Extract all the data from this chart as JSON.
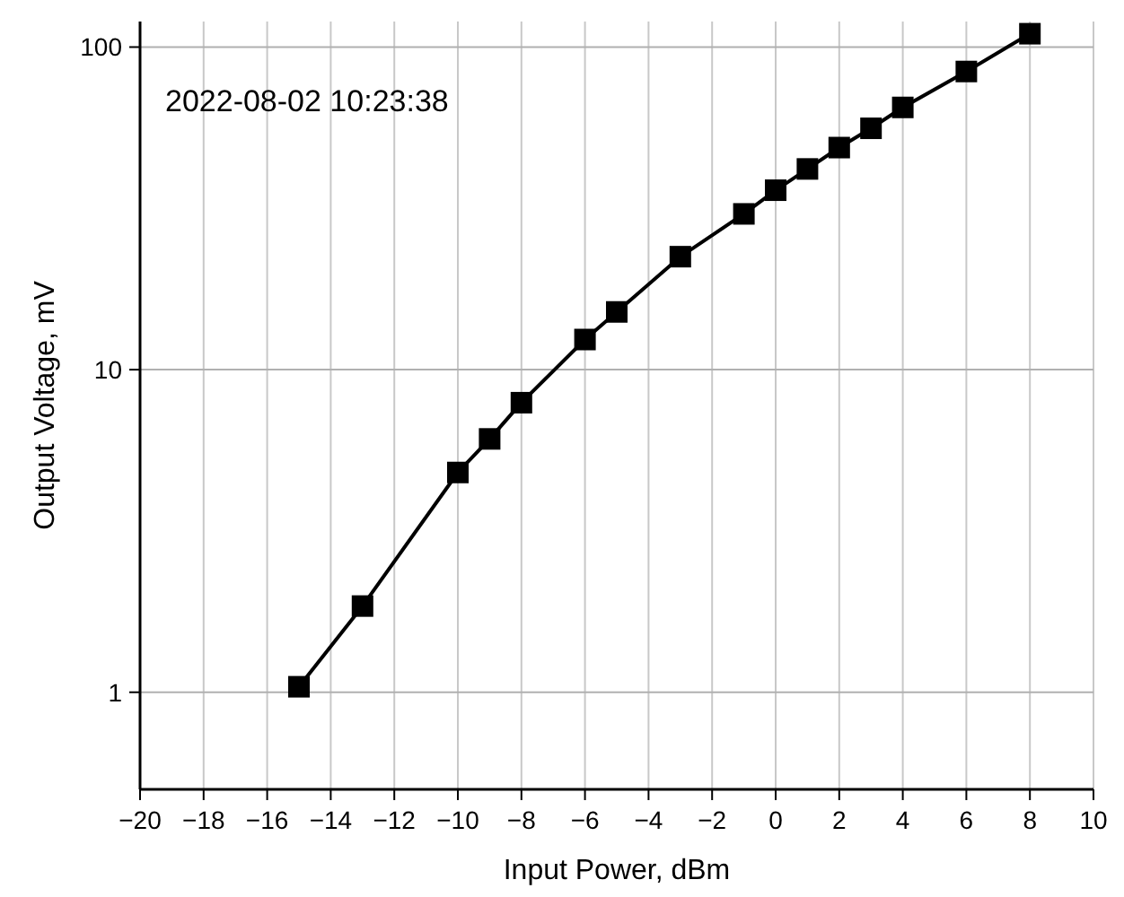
{
  "chart_data": {
    "type": "line",
    "xlabel": "Input Power, dBm",
    "ylabel": "Output Voltage, mV",
    "annotations": [
      "2022-08-02 10:23:38"
    ],
    "x": [
      -15,
      -13,
      -10,
      -9,
      -8,
      -6,
      -5,
      -3,
      -1,
      0,
      1,
      2,
      3,
      4,
      6,
      8
    ],
    "series": [
      {
        "color": "#000000",
        "values": [
          1.04,
          1.85,
          4.8,
          6.1,
          7.9,
          12.4,
          15.1,
          22.4,
          30.4,
          36,
          41.9,
          48.8,
          56,
          65,
          84,
          110
        ]
      }
    ],
    "xlim": [
      -20,
      10
    ],
    "xticks": [
      {
        "value": -20,
        "label": "−20"
      },
      {
        "value": -18,
        "label": "−18"
      },
      {
        "value": -16,
        "label": "−16"
      },
      {
        "value": -14,
        "label": "−14"
      },
      {
        "value": -12,
        "label": "−12"
      },
      {
        "value": -10,
        "label": "−10"
      },
      {
        "value": -8,
        "label": "−8"
      },
      {
        "value": -6,
        "label": "−6"
      },
      {
        "value": -4,
        "label": "−4"
      },
      {
        "value": -2,
        "label": "−2"
      },
      0,
      2,
      4,
      6,
      8,
      10
    ],
    "ylim": [
      0.5,
      120
    ],
    "yticks": [
      1,
      10,
      100
    ],
    "log": "y",
    "grid": true,
    "marker": "square",
    "line_style": "solid"
  }
}
